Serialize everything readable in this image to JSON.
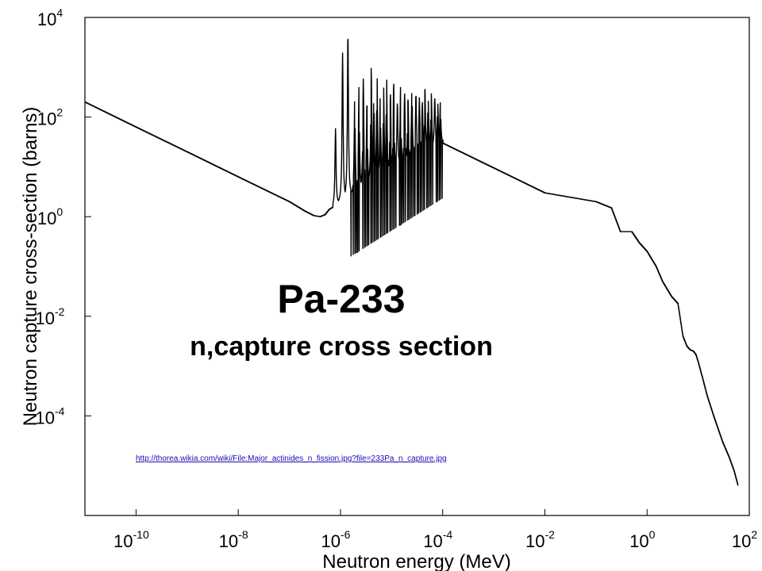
{
  "chart_data": {
    "type": "line",
    "title": "Pa-233",
    "subtitle": "n,capture cross section",
    "xlabel": "Neutron energy (MeV)",
    "ylabel": "Neutron capture cross-section (barns)",
    "xscale": "log",
    "yscale": "log",
    "xlim": [
      1e-11,
      100
    ],
    "ylim": [
      1e-06,
      10000
    ],
    "x_ticks": [
      {
        "base": "10",
        "exp": "-10",
        "value": 1e-10
      },
      {
        "base": "10",
        "exp": "-8",
        "value": 1e-08
      },
      {
        "base": "10",
        "exp": "-6",
        "value": 1e-06
      },
      {
        "base": "10",
        "exp": "-4",
        "value": 0.0001
      },
      {
        "base": "10",
        "exp": "-2",
        "value": 0.01
      },
      {
        "base": "10",
        "exp": "0",
        "value": 1
      },
      {
        "base": "10",
        "exp": "2",
        "value": 100
      }
    ],
    "y_ticks": [
      {
        "base": "10",
        "exp": "4",
        "value": 10000
      },
      {
        "base": "10",
        "exp": "2",
        "value": 100
      },
      {
        "base": "10",
        "exp": "0",
        "value": 1
      },
      {
        "base": "10",
        "exp": "-2",
        "value": 0.01
      },
      {
        "base": "10",
        "exp": "-4",
        "value": 0.0001
      }
    ],
    "grid": false,
    "legend": "none",
    "line_color": "#000000",
    "annotation_link": "http://thorea.wikia.com/wiki/File:Major_actinides_n_fission.jpg?file=233Pa_n_capture.jpg",
    "smooth_series": {
      "x": [
        1e-11,
        1e-10,
        1e-09,
        1e-08,
        1e-07,
        2e-07,
        3e-07,
        4e-07,
        5e-07,
        6e-07,
        0.0001,
        0.001,
        0.01,
        0.1,
        0.2,
        0.3,
        0.5,
        0.7,
        1,
        1.5,
        2,
        3,
        4,
        5,
        6,
        7,
        8,
        9,
        10,
        12,
        15,
        20,
        30,
        40,
        50,
        60
      ],
      "y": [
        200,
        63,
        20,
        6.3,
        2,
        1.3,
        1.05,
        1,
        1.1,
        1.4,
        30,
        9.5,
        3,
        2,
        1.5,
        0.5,
        0.5,
        0.3,
        0.2,
        0.1,
        0.05,
        0.025,
        0.018,
        0.004,
        0.0025,
        0.0021,
        0.002,
        0.0017,
        0.0012,
        0.0006,
        0.00025,
        0.0001,
        3e-05,
        1.5e-05,
        8e-06,
        4e-06
      ]
    },
    "resonances": [
      {
        "x": 8e-07,
        "y": 60
      },
      {
        "x": 1.1e-06,
        "y": 2000
      },
      {
        "x": 1.4e-06,
        "y": 5000
      },
      {
        "x": 1.9e-06,
        "y": 250
      },
      {
        "x": 2.3e-06,
        "y": 400
      },
      {
        "x": 2.8e-06,
        "y": 600
      },
      {
        "x": 3.3e-06,
        "y": 200
      },
      {
        "x": 4e-06,
        "y": 1000
      },
      {
        "x": 4.5e-06,
        "y": 300
      },
      {
        "x": 5.2e-06,
        "y": 700
      },
      {
        "x": 6e-06,
        "y": 250
      },
      {
        "x": 7e-06,
        "y": 400
      },
      {
        "x": 8e-06,
        "y": 600
      },
      {
        "x": 9.5e-06,
        "y": 300
      },
      {
        "x": 1.1e-05,
        "y": 500
      },
      {
        "x": 1.3e-05,
        "y": 200
      },
      {
        "x": 1.5e-05,
        "y": 400
      },
      {
        "x": 1.8e-05,
        "y": 300
      },
      {
        "x": 2.1e-05,
        "y": 250
      },
      {
        "x": 2.5e-05,
        "y": 400
      },
      {
        "x": 3e-05,
        "y": 300
      },
      {
        "x": 3.5e-05,
        "y": 250
      },
      {
        "x": 4e-05,
        "y": 200
      },
      {
        "x": 4.5e-05,
        "y": 400
      },
      {
        "x": 5.2e-05,
        "y": 250
      },
      {
        "x": 6e-05,
        "y": 300
      },
      {
        "x": 7e-05,
        "y": 250
      },
      {
        "x": 8e-05,
        "y": 200
      },
      {
        "x": 9e-05,
        "y": 200
      }
    ]
  }
}
